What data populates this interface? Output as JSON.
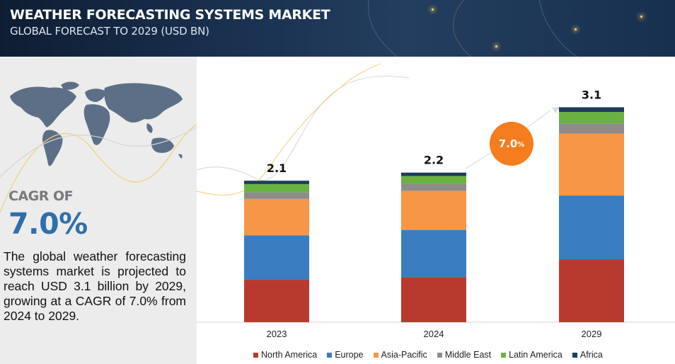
{
  "header": {
    "title": "WEATHER FORECASTING SYSTEMS MARKET",
    "subtitle": "GLOBAL FORECAST TO 2029 (USD BN)"
  },
  "left_panel": {
    "cagr_label": "CAGR OF",
    "cagr_value": "7.0%",
    "description": "The global weather forecasting systems market is projected to reach USD 3.1 billion by 2029, growing at a CAGR of 7.0% from 2024 to 2029."
  },
  "cagr_bubble": {
    "value": "7.0",
    "unit": "%"
  },
  "chart_data": {
    "type": "bar",
    "stacked": true,
    "categories": [
      "2023",
      "2024",
      "2029"
    ],
    "totals": [
      "2.1",
      "2.2",
      "3.1"
    ],
    "series": [
      {
        "name": "North America",
        "color": "#b83a2f",
        "values": [
          0.63,
          0.67,
          0.93
        ]
      },
      {
        "name": "Europe",
        "color": "#3a7dc0",
        "values": [
          0.66,
          0.7,
          0.95
        ]
      },
      {
        "name": "Asia-Pacific",
        "color": "#f79646",
        "values": [
          0.54,
          0.58,
          0.92
        ]
      },
      {
        "name": "Middle East",
        "color": "#8c8c8c",
        "values": [
          0.1,
          0.1,
          0.15
        ]
      },
      {
        "name": "Latin America",
        "color": "#69b241",
        "values": [
          0.12,
          0.12,
          0.17
        ]
      },
      {
        "name": "Africa",
        "color": "#1f3c5e",
        "values": [
          0.05,
          0.05,
          0.07
        ]
      }
    ],
    "ylim": [
      0,
      3.1
    ],
    "grid": false,
    "legend_position": "bottom"
  }
}
